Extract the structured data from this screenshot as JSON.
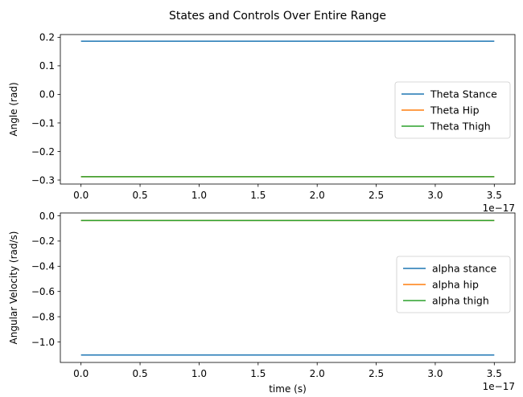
{
  "suptitle": "States and Controls Over Entire Range",
  "chart_data": [
    {
      "type": "line",
      "title": "",
      "xlabel": "",
      "ylabel": "Angle (rad)",
      "x_offset_label": "1e−17",
      "xlim": [
        -0.175,
        3.675
      ],
      "ylim": [
        -0.314,
        0.2095
      ],
      "xticks": [
        0.0,
        0.5,
        1.0,
        1.5,
        2.0,
        2.5,
        3.0,
        3.5
      ],
      "xtick_labels": [
        "0.0",
        "0.5",
        "1.0",
        "1.5",
        "2.0",
        "2.5",
        "3.0",
        "3.5"
      ],
      "yticks": [
        -0.3,
        -0.2,
        -0.1,
        0.0,
        0.1,
        0.2
      ],
      "ytick_labels": [
        "−0.3",
        "−0.2",
        "−0.1",
        "0.0",
        "0.1",
        "0.2"
      ],
      "grid": false,
      "legend": "center-right",
      "series": [
        {
          "name": "Theta Stance",
          "color": "#1f77b4",
          "x": [
            0.0,
            3.5
          ],
          "y": [
            0.1864,
            0.1864
          ]
        },
        {
          "name": "Theta Hip",
          "color": "#ff7f0e",
          "x": [
            0.0,
            3.5
          ],
          "y": [
            -0.2883,
            -0.2883
          ]
        },
        {
          "name": "Theta Thigh",
          "color": "#2ca02c",
          "x": [
            0.0,
            3.5
          ],
          "y": [
            -0.2883,
            -0.2883
          ]
        }
      ]
    },
    {
      "type": "line",
      "title": "",
      "xlabel": "time (s)",
      "ylabel": "Angular Velocity (rad/s)",
      "x_offset_label": "1e−17",
      "xlim": [
        -0.175,
        3.675
      ],
      "ylim": [
        -1.1625,
        0.0225
      ],
      "xticks": [
        0.0,
        0.5,
        1.0,
        1.5,
        2.0,
        2.5,
        3.0,
        3.5
      ],
      "xtick_labels": [
        "0.0",
        "0.5",
        "1.0",
        "1.5",
        "2.0",
        "2.5",
        "3.0",
        "3.5"
      ],
      "yticks": [
        -1.0,
        -0.8,
        -0.6,
        -0.4,
        -0.2,
        0.0
      ],
      "ytick_labels": [
        "−1.0",
        "−0.8",
        "−0.6",
        "−0.4",
        "−0.2",
        "0.0"
      ],
      "grid": false,
      "legend": "center-right",
      "series": [
        {
          "name": "alpha stance",
          "color": "#1f77b4",
          "x": [
            0.0,
            3.5
          ],
          "y": [
            -1.1035,
            -1.1035
          ]
        },
        {
          "name": "alpha hip",
          "color": "#ff7f0e",
          "x": [
            0.0,
            3.5
          ],
          "y": [
            -0.0376,
            -0.0376
          ]
        },
        {
          "name": "alpha thigh",
          "color": "#2ca02c",
          "x": [
            0.0,
            3.5
          ],
          "y": [
            -0.0376,
            -0.0376
          ]
        }
      ]
    }
  ]
}
